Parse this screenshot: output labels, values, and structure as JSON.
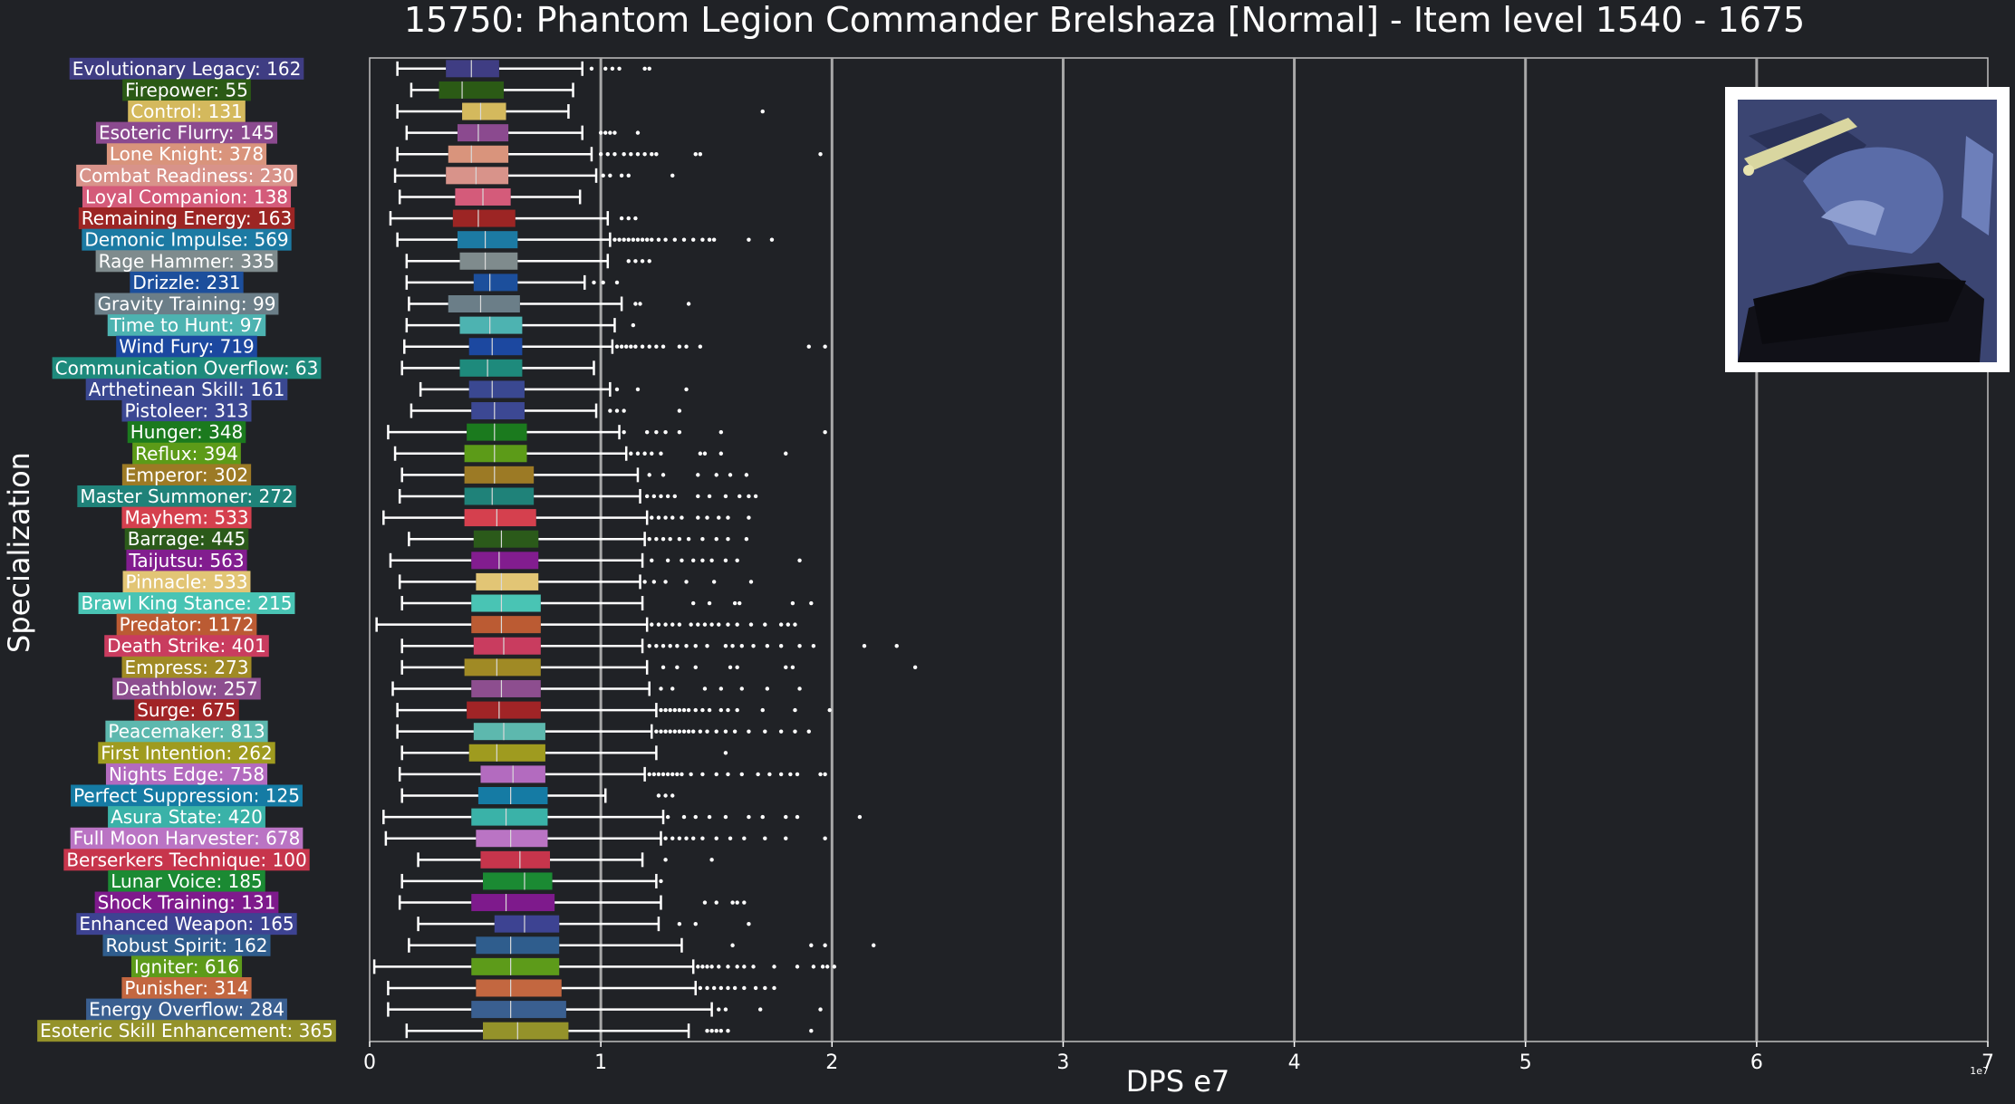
{
  "chart_data": {
    "type": "boxplot",
    "title": "15750: Phantom Legion Commander Brelshaza [Normal] - Item level 1540 - 1675",
    "xlabel": "DPS e7",
    "ylabel": "Specialization",
    "x_offset_label": "1e7",
    "xlim": [
      0,
      7
    ],
    "xticks": [
      0,
      1,
      2,
      3,
      4,
      5,
      6,
      7
    ],
    "grid": "vertical",
    "image_icon": "brelshaza-portrait-icon",
    "series": [
      {
        "label": "Evolutionary Legacy: 162",
        "color": "#3f3d83",
        "whislo": 0.12,
        "q1": 0.33,
        "med": 0.44,
        "q3": 0.56,
        "whishi": 0.92,
        "fliers": [
          0.96,
          1.02,
          1.05,
          1.08,
          1.19,
          1.21
        ]
      },
      {
        "label": "Firepower: 55",
        "color": "#2b5a15",
        "whislo": 0.18,
        "q1": 0.3,
        "med": 0.4,
        "q3": 0.58,
        "whishi": 0.88,
        "fliers": []
      },
      {
        "label": "Control: 131",
        "color": "#d4b95d",
        "whislo": 0.12,
        "q1": 0.4,
        "med": 0.48,
        "q3": 0.59,
        "whishi": 0.86,
        "fliers": [
          1.7
        ]
      },
      {
        "label": "Esoteric Flurry: 145",
        "color": "#8b4a8f",
        "whislo": 0.16,
        "q1": 0.38,
        "med": 0.47,
        "q3": 0.6,
        "whishi": 0.92,
        "fliers": [
          1.0,
          1.02,
          1.04,
          1.06,
          1.16
        ]
      },
      {
        "label": "Lone Knight: 378",
        "color": "#d9947c",
        "whislo": 0.12,
        "q1": 0.34,
        "med": 0.44,
        "q3": 0.6,
        "whishi": 0.96,
        "fliers": [
          1.0,
          1.03,
          1.06,
          1.1,
          1.13,
          1.16,
          1.19,
          1.22,
          1.24,
          1.41,
          1.43,
          1.95
        ]
      },
      {
        "label": "Combat Readiness: 230",
        "color": "#d8938a",
        "whislo": 0.11,
        "q1": 0.33,
        "med": 0.46,
        "q3": 0.6,
        "whishi": 0.98,
        "fliers": [
          1.01,
          1.04,
          1.09,
          1.12,
          1.31
        ]
      },
      {
        "label": "Loyal Companion: 138",
        "color": "#d45b7a",
        "whislo": 0.13,
        "q1": 0.37,
        "med": 0.49,
        "q3": 0.61,
        "whishi": 0.91,
        "fliers": []
      },
      {
        "label": "Remaining Energy: 163",
        "color": "#9c2524",
        "whislo": 0.09,
        "q1": 0.36,
        "med": 0.47,
        "q3": 0.63,
        "whishi": 1.03,
        "fliers": [
          1.09,
          1.12,
          1.15
        ]
      },
      {
        "label": "Demonic Impulse: 569",
        "color": "#1c7aa3",
        "whislo": 0.12,
        "q1": 0.38,
        "med": 0.5,
        "q3": 0.64,
        "whishi": 1.04,
        "fliers": [
          1.06,
          1.08,
          1.1,
          1.12,
          1.14,
          1.16,
          1.18,
          1.2,
          1.22,
          1.25,
          1.28,
          1.32,
          1.36,
          1.4,
          1.44,
          1.47,
          1.49,
          1.64,
          1.74
        ]
      },
      {
        "label": "Rage Hammer: 335",
        "color": "#7f8b8d",
        "whislo": 0.16,
        "q1": 0.39,
        "med": 0.5,
        "q3": 0.64,
        "whishi": 1.03,
        "fliers": [
          1.12,
          1.15,
          1.18,
          1.21
        ]
      },
      {
        "label": "Drizzle: 231",
        "color": "#1c4f9c",
        "whislo": 0.16,
        "q1": 0.45,
        "med": 0.52,
        "q3": 0.64,
        "whishi": 0.93,
        "fliers": [
          0.97,
          1.01,
          1.07
        ]
      },
      {
        "label": "Gravity Training: 99",
        "color": "#6b7e88",
        "whislo": 0.17,
        "q1": 0.34,
        "med": 0.48,
        "q3": 0.65,
        "whishi": 1.09,
        "fliers": [
          1.15,
          1.17,
          1.38
        ]
      },
      {
        "label": "Time to Hunt: 97",
        "color": "#4db3b1",
        "whislo": 0.16,
        "q1": 0.39,
        "med": 0.52,
        "q3": 0.66,
        "whishi": 1.06,
        "fliers": [
          1.14
        ]
      },
      {
        "label": "Wind Fury: 719",
        "color": "#1c48a0",
        "whislo": 0.15,
        "q1": 0.43,
        "med": 0.53,
        "q3": 0.66,
        "whishi": 1.05,
        "fliers": [
          1.07,
          1.09,
          1.11,
          1.13,
          1.15,
          1.18,
          1.21,
          1.24,
          1.27,
          1.34,
          1.37,
          1.43,
          1.9,
          1.97
        ]
      },
      {
        "label": "Communication Overflow: 63",
        "color": "#1e8a7c",
        "whislo": 0.14,
        "q1": 0.39,
        "med": 0.51,
        "q3": 0.66,
        "whishi": 0.97,
        "fliers": []
      },
      {
        "label": "Arthetinean Skill: 161",
        "color": "#3a4891",
        "whislo": 0.22,
        "q1": 0.43,
        "med": 0.53,
        "q3": 0.67,
        "whishi": 1.04,
        "fliers": [
          1.07,
          1.16,
          1.37
        ]
      },
      {
        "label": "Pistoleer: 313",
        "color": "#3c4893",
        "whislo": 0.18,
        "q1": 0.44,
        "med": 0.54,
        "q3": 0.67,
        "whishi": 0.98,
        "fliers": [
          1.04,
          1.07,
          1.1,
          1.34
        ]
      },
      {
        "label": "Hunger: 348",
        "color": "#1b7a1e",
        "whislo": 0.08,
        "q1": 0.42,
        "med": 0.54,
        "q3": 0.68,
        "whishi": 1.08,
        "fliers": [
          1.1,
          1.2,
          1.24,
          1.28,
          1.34,
          1.52,
          1.97
        ]
      },
      {
        "label": "Reflux: 394",
        "color": "#5c9b18",
        "whislo": 0.11,
        "q1": 0.41,
        "med": 0.54,
        "q3": 0.68,
        "whishi": 1.11,
        "fliers": [
          1.13,
          1.16,
          1.19,
          1.22,
          1.26,
          1.43,
          1.45,
          1.52,
          1.8
        ]
      },
      {
        "label": "Emperor: 302",
        "color": "#9c7a25",
        "whislo": 0.14,
        "q1": 0.41,
        "med": 0.54,
        "q3": 0.71,
        "whishi": 1.16,
        "fliers": [
          1.21,
          1.27,
          1.42,
          1.5,
          1.56,
          1.63
        ]
      },
      {
        "label": "Master Summoner: 272",
        "color": "#1f8279",
        "whislo": 0.13,
        "q1": 0.41,
        "med": 0.53,
        "q3": 0.71,
        "whishi": 1.17,
        "fliers": [
          1.2,
          1.23,
          1.26,
          1.29,
          1.32,
          1.42,
          1.47,
          1.54,
          1.6,
          1.64,
          1.67
        ]
      },
      {
        "label": "Mayhem: 533",
        "color": "#d5404e",
        "whislo": 0.06,
        "q1": 0.41,
        "med": 0.55,
        "q3": 0.72,
        "whishi": 1.2,
        "fliers": [
          1.22,
          1.25,
          1.28,
          1.31,
          1.35,
          1.42,
          1.46,
          1.51,
          1.55,
          1.64
        ]
      },
      {
        "label": "Barrage: 445",
        "color": "#2b5a1a",
        "whislo": 0.17,
        "q1": 0.45,
        "med": 0.57,
        "q3": 0.73,
        "whishi": 1.19,
        "fliers": [
          1.21,
          1.24,
          1.27,
          1.3,
          1.34,
          1.38,
          1.44,
          1.5,
          1.55,
          1.63
        ]
      },
      {
        "label": "Taijutsu: 563",
        "color": "#821d8f",
        "whislo": 0.09,
        "q1": 0.44,
        "med": 0.56,
        "q3": 0.73,
        "whishi": 1.18,
        "fliers": [
          1.22,
          1.29,
          1.35,
          1.4,
          1.44,
          1.48,
          1.54,
          1.59,
          1.86
        ]
      },
      {
        "label": "Pinnacle: 533",
        "color": "#e2c575",
        "whislo": 0.13,
        "q1": 0.46,
        "med": 0.57,
        "q3": 0.73,
        "whishi": 1.17,
        "fliers": [
          1.19,
          1.23,
          1.28,
          1.37,
          1.49,
          1.65
        ]
      },
      {
        "label": "Brawl King Stance: 215",
        "color": "#49c4b4",
        "whislo": 0.14,
        "q1": 0.44,
        "med": 0.57,
        "q3": 0.74,
        "whishi": 1.18,
        "fliers": [
          1.4,
          1.47,
          1.58,
          1.6,
          1.83,
          1.91
        ]
      },
      {
        "label": "Predator: 1172",
        "color": "#bb5b33",
        "whislo": 0.03,
        "q1": 0.44,
        "med": 0.57,
        "q3": 0.74,
        "whishi": 1.2,
        "fliers": [
          1.22,
          1.25,
          1.28,
          1.31,
          1.34,
          1.39,
          1.42,
          1.45,
          1.48,
          1.51,
          1.55,
          1.59,
          1.65,
          1.71,
          1.78,
          1.81,
          1.84
        ]
      },
      {
        "label": "Death Strike: 401",
        "color": "#c93c5f",
        "whislo": 0.14,
        "q1": 0.45,
        "med": 0.58,
        "q3": 0.74,
        "whishi": 1.18,
        "fliers": [
          1.21,
          1.24,
          1.27,
          1.3,
          1.33,
          1.37,
          1.41,
          1.46,
          1.54,
          1.57,
          1.61,
          1.66,
          1.72,
          1.78,
          1.86,
          1.92,
          2.14,
          2.28
        ]
      },
      {
        "label": "Empress: 273",
        "color": "#a08a25",
        "whislo": 0.14,
        "q1": 0.41,
        "med": 0.55,
        "q3": 0.74,
        "whishi": 1.2,
        "fliers": [
          1.27,
          1.33,
          1.41,
          1.56,
          1.59,
          1.8,
          1.83,
          2.36
        ]
      },
      {
        "label": "Deathblow: 257",
        "color": "#8d4e8f",
        "whislo": 0.1,
        "q1": 0.44,
        "med": 0.57,
        "q3": 0.74,
        "whishi": 1.21,
        "fliers": [
          1.26,
          1.31,
          1.45,
          1.52,
          1.61,
          1.72,
          1.86
        ]
      },
      {
        "label": "Surge: 675",
        "color": "#a12426",
        "whislo": 0.12,
        "q1": 0.42,
        "med": 0.56,
        "q3": 0.74,
        "whishi": 1.24,
        "fliers": [
          1.26,
          1.28,
          1.3,
          1.32,
          1.34,
          1.36,
          1.38,
          1.41,
          1.44,
          1.47,
          1.52,
          1.55,
          1.59,
          1.7,
          1.84,
          1.99
        ]
      },
      {
        "label": "Peacemaker: 813",
        "color": "#5db8ae",
        "whislo": 0.12,
        "q1": 0.45,
        "med": 0.58,
        "q3": 0.76,
        "whishi": 1.22,
        "fliers": [
          1.24,
          1.26,
          1.28,
          1.3,
          1.32,
          1.34,
          1.36,
          1.38,
          1.4,
          1.43,
          1.46,
          1.5,
          1.54,
          1.58,
          1.64,
          1.71,
          1.78,
          1.84,
          1.9
        ]
      },
      {
        "label": "First Intention: 262",
        "color": "#9f9b1f",
        "whislo": 0.14,
        "q1": 0.43,
        "med": 0.55,
        "q3": 0.76,
        "whishi": 1.24,
        "fliers": [
          1.54
        ]
      },
      {
        "label": "Nights Edge: 758",
        "color": "#b36bbf",
        "whislo": 0.13,
        "q1": 0.48,
        "med": 0.62,
        "q3": 0.76,
        "whishi": 1.19,
        "fliers": [
          1.21,
          1.23,
          1.25,
          1.27,
          1.29,
          1.31,
          1.33,
          1.35,
          1.39,
          1.44,
          1.5,
          1.55,
          1.61,
          1.68,
          1.73,
          1.78,
          1.82,
          1.85,
          1.95,
          1.97
        ]
      },
      {
        "label": "Perfect Suppression: 125",
        "color": "#157ba4",
        "whislo": 0.14,
        "q1": 0.47,
        "med": 0.61,
        "q3": 0.77,
        "whishi": 1.02,
        "fliers": [
          1.25,
          1.28,
          1.31
        ]
      },
      {
        "label": "Asura State: 420",
        "color": "#3ab2a8",
        "whislo": 0.06,
        "q1": 0.44,
        "med": 0.59,
        "q3": 0.77,
        "whishi": 1.27,
        "fliers": [
          1.29,
          1.36,
          1.41,
          1.47,
          1.54,
          1.64,
          1.7,
          1.8,
          1.85,
          2.12
        ]
      },
      {
        "label": "Full Moon Harvester: 678",
        "color": "#ba74c4",
        "whislo": 0.07,
        "q1": 0.46,
        "med": 0.61,
        "q3": 0.77,
        "whishi": 1.26,
        "fliers": [
          1.28,
          1.31,
          1.34,
          1.37,
          1.4,
          1.44,
          1.5,
          1.56,
          1.62,
          1.71,
          1.8,
          1.97
        ]
      },
      {
        "label": "Berserkers Technique: 100",
        "color": "#c7354c",
        "whislo": 0.21,
        "q1": 0.48,
        "med": 0.65,
        "q3": 0.78,
        "whishi": 1.18,
        "fliers": [
          1.28,
          1.48
        ]
      },
      {
        "label": "Lunar Voice: 185",
        "color": "#1b8a33",
        "whislo": 0.14,
        "q1": 0.49,
        "med": 0.67,
        "q3": 0.79,
        "whishi": 1.24,
        "fliers": [
          1.26
        ]
      },
      {
        "label": "Shock Training: 131",
        "color": "#7e1a8c",
        "whislo": 0.13,
        "q1": 0.44,
        "med": 0.59,
        "q3": 0.8,
        "whishi": 1.26,
        "fliers": [
          1.45,
          1.5,
          1.57,
          1.59,
          1.62
        ]
      },
      {
        "label": "Enhanced Weapon: 165",
        "color": "#3d4392",
        "whislo": 0.21,
        "q1": 0.54,
        "med": 0.67,
        "q3": 0.82,
        "whishi": 1.25,
        "fliers": [
          1.34,
          1.41,
          1.64
        ]
      },
      {
        "label": "Robust Spirit: 162",
        "color": "#2f5d8d",
        "whislo": 0.17,
        "q1": 0.46,
        "med": 0.61,
        "q3": 0.82,
        "whishi": 1.35,
        "fliers": [
          1.57,
          1.91,
          1.97,
          2.18
        ]
      },
      {
        "label": "Igniter: 616",
        "color": "#5d9b1a",
        "whislo": 0.02,
        "q1": 0.44,
        "med": 0.61,
        "q3": 0.82,
        "whishi": 1.4,
        "fliers": [
          1.42,
          1.44,
          1.46,
          1.48,
          1.51,
          1.55,
          1.59,
          1.62,
          1.66,
          1.75,
          1.85,
          1.92,
          1.96,
          1.98,
          2.01
        ]
      },
      {
        "label": "Punisher: 314",
        "color": "#c36740",
        "whislo": 0.08,
        "q1": 0.46,
        "med": 0.61,
        "q3": 0.83,
        "whishi": 1.41,
        "fliers": [
          1.43,
          1.46,
          1.49,
          1.52,
          1.55,
          1.58,
          1.62,
          1.67,
          1.71,
          1.75
        ]
      },
      {
        "label": "Energy Overflow: 284",
        "color": "#3a5f90",
        "whislo": 0.08,
        "q1": 0.44,
        "med": 0.61,
        "q3": 0.85,
        "whishi": 1.48,
        "fliers": [
          1.51,
          1.54,
          1.69,
          1.95
        ]
      },
      {
        "label": "Esoteric Skill Enhancement: 365",
        "color": "#94922a",
        "whislo": 0.16,
        "q1": 0.49,
        "med": 0.64,
        "q3": 0.86,
        "whishi": 1.38,
        "fliers": [
          1.46,
          1.48,
          1.5,
          1.52,
          1.55,
          1.91
        ]
      }
    ]
  }
}
